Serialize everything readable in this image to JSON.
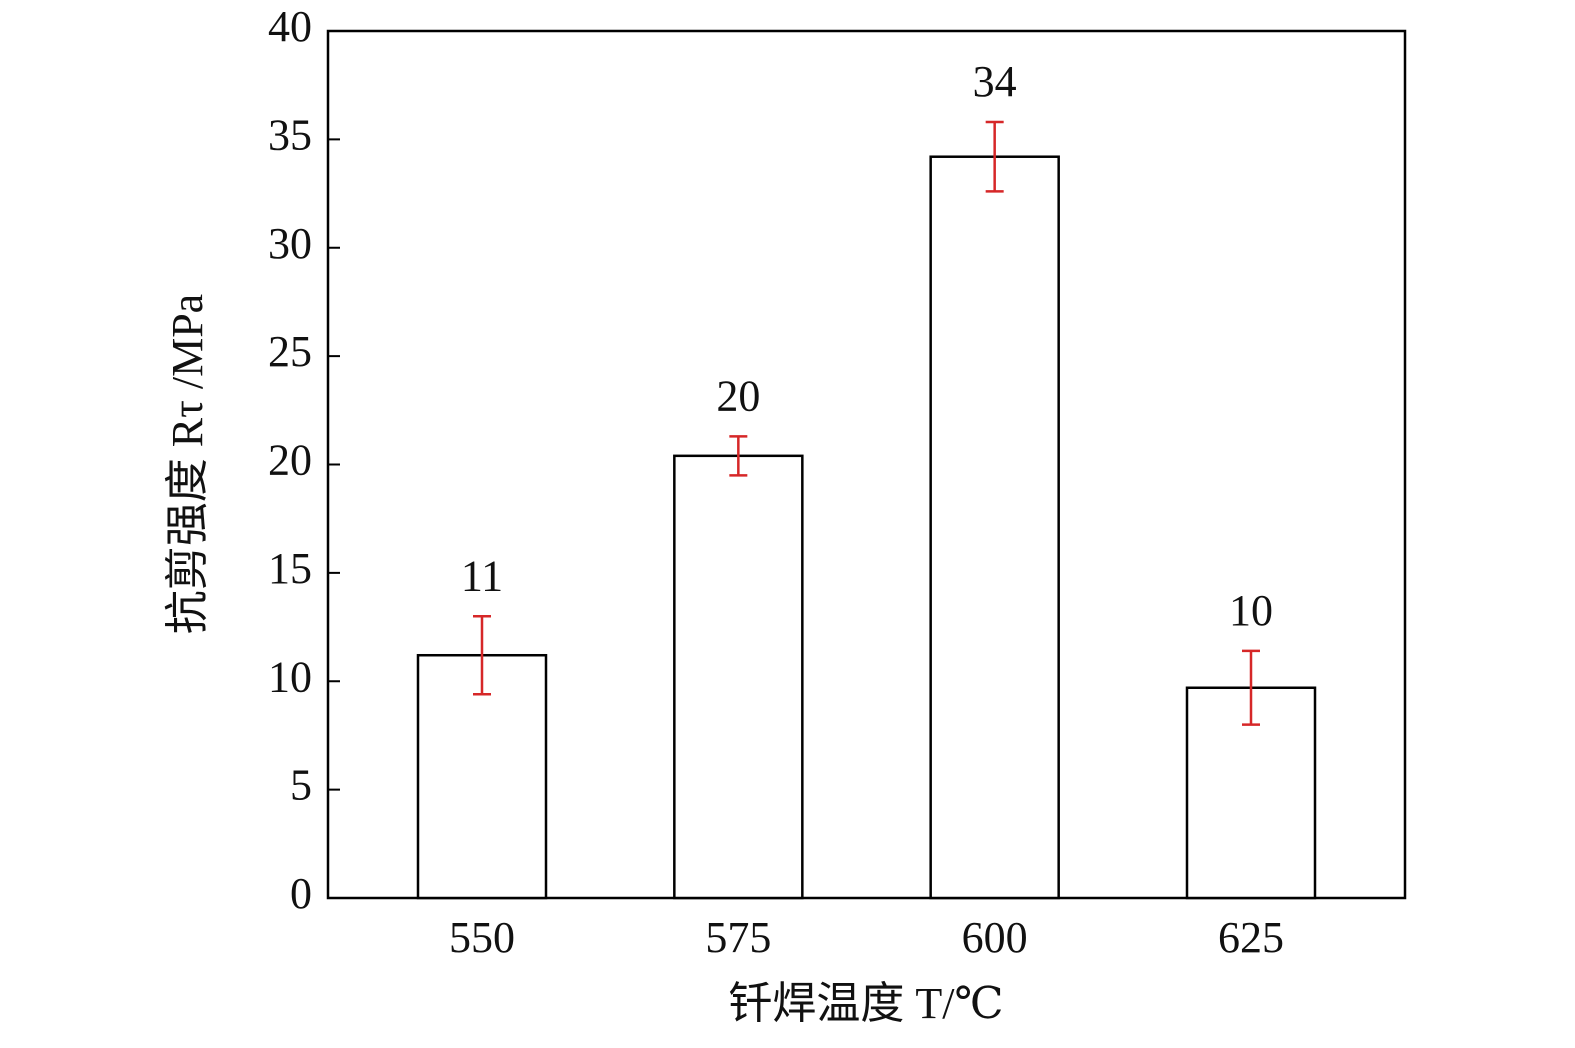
{
  "chart_data": {
    "type": "bar",
    "x_label": "钎焊温度 T/℃",
    "y_label": "抗剪强度 Rτ /MPa",
    "categories": [
      "550",
      "575",
      "600",
      "625"
    ],
    "values": [
      11.2,
      20.4,
      34.2,
      9.7
    ],
    "value_labels": [
      "11",
      "20",
      "34",
      "10"
    ],
    "errors": [
      1.8,
      0.9,
      1.6,
      1.7
    ],
    "color": "#ffffff",
    "edge_color": "#000000",
    "error_color": "#d62728",
    "ylim": [
      0,
      40
    ],
    "yticks": [
      0,
      5,
      10,
      15,
      20,
      25,
      30,
      35,
      40
    ]
  }
}
